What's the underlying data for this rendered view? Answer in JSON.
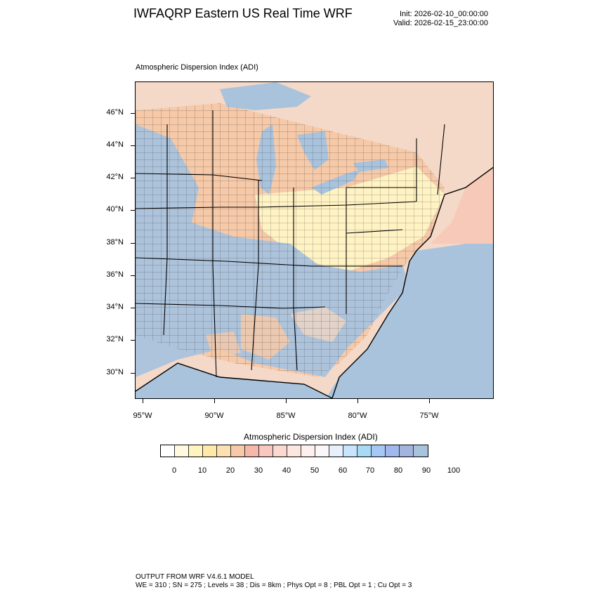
{
  "header": {
    "title": "IWFAQRP Eastern US Real Time WRF",
    "init": "Init: 2026-02-10_00:00:00",
    "valid": "Valid: 2026-02-15_23:00:00"
  },
  "map": {
    "title": "Atmospheric Dispersion Index   (ADI)",
    "lat_labels": [
      "46°N",
      "44°N",
      "42°N",
      "40°N",
      "38°N",
      "36°N",
      "34°N",
      "32°N",
      "30°N"
    ],
    "lon_labels": [
      "95°W",
      "90°W",
      "85°W",
      "80°W",
      "75°W"
    ],
    "colors": {
      "water": "#a9c3dd",
      "land_low": "#fff3c4",
      "land_mid": "#f6c9a8",
      "land_high": "#a9c3dd",
      "canada": "#f4d9c8"
    }
  },
  "colorbar": {
    "title": "Atmospheric Dispersion Index  (ADI)",
    "levels": [
      "0",
      "10",
      "20",
      "30",
      "40",
      "50",
      "60",
      "70",
      "80",
      "90",
      "100"
    ],
    "colors": [
      "#ffffff",
      "#fffadf",
      "#fff3c0",
      "#ffe9a8",
      "#fde0b0",
      "#f8c8a8",
      "#f6b8a8",
      "#f9c6c0",
      "#fbd8d0",
      "#fce6e0",
      "#fdf0ee",
      "#fbf6f8",
      "#e8f0fc",
      "#c8e6fb",
      "#a8daf6",
      "#a6c8f4",
      "#a0b8ec",
      "#a4b4dc",
      "#a9c3dd"
    ]
  },
  "footer": {
    "line1": "OUTPUT FROM WRF V4.6.1 MODEL",
    "line2": "WE = 310 ; SN = 275 ; Levels = 38 ; Dis = 8km ; Phys Opt = 8 ; PBL Opt = 1 ; Cu Opt = 3"
  }
}
